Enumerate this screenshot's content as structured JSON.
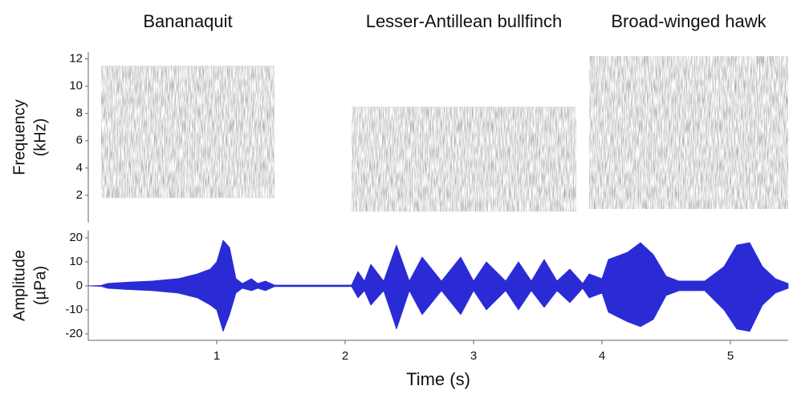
{
  "chart_data": [
    {
      "type": "spectrogram",
      "ylabel": [
        "Frequency",
        "(kHz)"
      ],
      "xlim": [
        0,
        5.45
      ],
      "ylim": [
        0,
        12.5
      ],
      "yticks": [
        2,
        4,
        6,
        8,
        10,
        12
      ],
      "color": "#555555",
      "segments": [
        {
          "label": "Bananaquit",
          "start": 0.1,
          "end": 1.45,
          "fmin": 1.8,
          "fmax": 11.5
        },
        {
          "label": "Lesser-Antillean bullfinch",
          "start": 2.05,
          "end": 3.8,
          "fmin": 0.8,
          "fmax": 8.5
        },
        {
          "label": "Broad-winged hawk",
          "start": 3.9,
          "end": 5.45,
          "fmin": 1.0,
          "fmax": 12.2
        }
      ],
      "bands": [
        {
          "start": 0.5,
          "end": 1.2,
          "freq": 8.6
        },
        {
          "start": 0.2,
          "end": 0.9,
          "freq": 7.2
        },
        {
          "start": 4.05,
          "end": 4.6,
          "freq": 4.2
        },
        {
          "start": 4.05,
          "end": 4.6,
          "freq": 8.6
        },
        {
          "start": 5.0,
          "end": 5.45,
          "freq": 4.0
        },
        {
          "start": 5.0,
          "end": 5.4,
          "freq": 8.1
        }
      ]
    },
    {
      "type": "waveform",
      "ylabel": [
        "Amplitude",
        "(µPa)"
      ],
      "xlabel": "Time (s)",
      "xlim": [
        0,
        5.45
      ],
      "xticks": [
        1,
        2,
        3,
        4,
        5
      ],
      "ylim": [
        -22.7,
        23
      ],
      "yticks": [
        -20,
        -10,
        0,
        10,
        20
      ],
      "color": "#2b2bd6",
      "x": [
        0,
        0.1,
        0.15,
        0.3,
        0.5,
        0.7,
        0.85,
        0.95,
        1.0,
        1.05,
        1.1,
        1.15,
        1.2,
        1.27,
        1.32,
        1.38,
        1.45,
        2.05,
        2.1,
        2.15,
        2.2,
        2.3,
        2.4,
        2.5,
        2.6,
        2.75,
        2.9,
        3.0,
        3.1,
        3.25,
        3.35,
        3.45,
        3.55,
        3.65,
        3.75,
        3.85,
        3.9,
        4.0,
        4.05,
        4.2,
        4.3,
        4.4,
        4.5,
        4.6,
        4.8,
        4.95,
        5.05,
        5.15,
        5.25,
        5.35,
        5.45
      ],
      "envelope_max": [
        0,
        0.2,
        1,
        1.5,
        2,
        3,
        5,
        7,
        10,
        19,
        16,
        3,
        1,
        3,
        1,
        2,
        0.3,
        0.3,
        6,
        2,
        9,
        2,
        17,
        2,
        12,
        2,
        12,
        2,
        10,
        2,
        10,
        2,
        11,
        2,
        7,
        1,
        5,
        3,
        11,
        14,
        18,
        13,
        4,
        2,
        2,
        8,
        17,
        18,
        8,
        3,
        1
      ],
      "envelope_min": [
        0,
        -0.2,
        -1,
        -1.5,
        -2,
        -3,
        -5,
        -8,
        -10,
        -19,
        -12,
        -3,
        -1,
        -2,
        -1,
        -2,
        -0.3,
        -0.3,
        -5,
        -2,
        -8,
        -2,
        -18,
        -2,
        -12,
        -2,
        -12,
        -2,
        -10,
        -2,
        -10,
        -2,
        -9,
        -2,
        -7,
        -1,
        -5,
        -3,
        -11,
        -15,
        -17,
        -14,
        -4,
        -2,
        -2,
        -10,
        -18,
        -19,
        -8,
        -3,
        -1
      ]
    }
  ]
}
